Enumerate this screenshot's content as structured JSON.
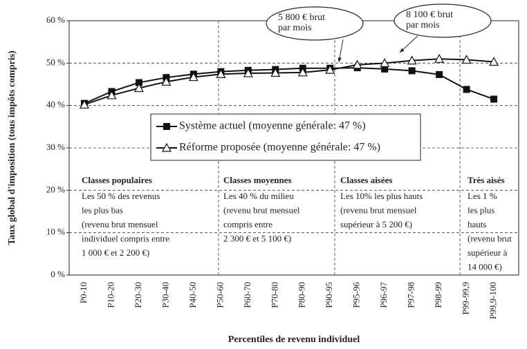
{
  "chart_data": {
    "type": "line",
    "y_label": "Taux global d'imposition (tous impôts compris)",
    "x_label": "Percentiles de revenu individuel",
    "categories": [
      "P0-10",
      "P10-20",
      "P20-30",
      "P30-40",
      "P40-50",
      "P50-60",
      "P60-70",
      "P70-80",
      "P80-90",
      "P90-95",
      "P95-96",
      "P96-97",
      "P97-98",
      "P98-99",
      "P99-99,9",
      "P99,9-100"
    ],
    "series": [
      {
        "name": "Système actuel (moyenne générale: 47 %)",
        "color": "#111111",
        "marker": "square",
        "values": [
          40.5,
          43.3,
          45.4,
          46.6,
          47.4,
          48.0,
          48.3,
          48.5,
          48.8,
          48.8,
          48.9,
          48.6,
          48.2,
          47.3,
          43.8,
          41.5
        ]
      },
      {
        "name": "Réforme proposée (moyenne générale: 47 %)",
        "color": "#111111",
        "marker": "triangle",
        "values": [
          40.2,
          42.4,
          44.1,
          45.6,
          46.7,
          47.4,
          47.6,
          47.7,
          47.8,
          48.4,
          49.6,
          50.0,
          50.6,
          51.0,
          50.8,
          50.3
        ]
      }
    ],
    "ylim": [
      0,
      60
    ],
    "yticks": [
      {
        "value": 0,
        "label": "0 %"
      },
      {
        "value": 10,
        "label": "10 %"
      },
      {
        "value": 20,
        "label": "20 %"
      },
      {
        "value": 30,
        "label": "30 %"
      },
      {
        "value": 40,
        "label": "40 %"
      },
      {
        "value": 50,
        "label": "50 %"
      },
      {
        "value": 60,
        "label": "60 %"
      }
    ],
    "grid": true,
    "annotations": [
      {
        "lines": [
          "5 800 € brut",
          "par mois"
        ]
      },
      {
        "lines": [
          "8 100 € brut",
          "par mois"
        ]
      }
    ],
    "classes": [
      {
        "title": "Classes populaires",
        "lines": [
          "Les 50 % des revenus",
          "les plus bas",
          "(revenu brut mensuel",
          "individuel compris entre",
          "1 000 € et 2 200 €)"
        ]
      },
      {
        "title": "Classes moyennes",
        "lines": [
          "Les 40 % du milieu",
          "(revenu brut mensuel",
          "compris entre",
          "2 300 € et 5 100 €)"
        ]
      },
      {
        "title": "Classes aisées",
        "lines": [
          "Les 10% les plus hauts",
          "(revenu brut mensuel",
          "supérieur à 5 200 €)"
        ]
      },
      {
        "title": "Très aisés",
        "lines": [
          "Les 1 %",
          "les plus",
          "hauts",
          "(revenu brut",
          "supérieur à",
          "14 000 €)"
        ]
      }
    ]
  }
}
